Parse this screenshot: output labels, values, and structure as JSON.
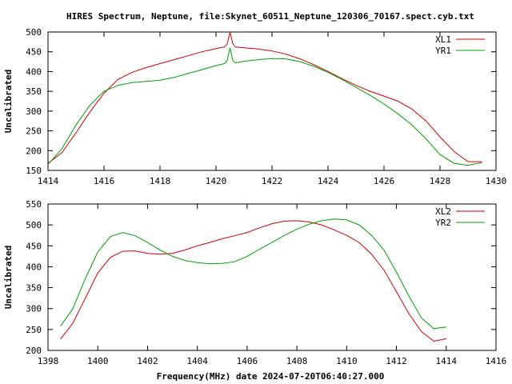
{
  "title": "HIRES Spectrum, Neptune, file:Skynet_60511_Neptune_120306_70167.spect.cyb.txt",
  "xlabel": "Frequency(MHz) date 2024-07-20T06:40:27.000",
  "colors": {
    "red": "#cc0000",
    "green": "#00a000"
  },
  "chart_data": [
    {
      "type": "line",
      "ylabel": "Uncalibrated",
      "xlim": [
        1414,
        1430
      ],
      "ylim": [
        150,
        500
      ],
      "xticks": [
        1414,
        1416,
        1418,
        1420,
        1422,
        1424,
        1426,
        1428,
        1430
      ],
      "yticks": [
        150,
        200,
        250,
        300,
        350,
        400,
        450,
        500
      ],
      "legend": "top-right",
      "series": [
        {
          "name": "XL1",
          "color": "#cc0000",
          "x": [
            1414.0,
            1414.5,
            1415.0,
            1415.5,
            1416.0,
            1416.5,
            1417.0,
            1417.5,
            1418.0,
            1418.5,
            1419.0,
            1419.5,
            1420.0,
            1420.3,
            1420.4,
            1420.5,
            1420.6,
            1420.7,
            1421.0,
            1421.5,
            1422.0,
            1422.5,
            1423.0,
            1423.5,
            1424.0,
            1424.5,
            1425.0,
            1425.5,
            1426.0,
            1426.5,
            1427.0,
            1427.5,
            1428.0,
            1428.5,
            1429.0,
            1429.5
          ],
          "y": [
            168,
            195,
            245,
            298,
            345,
            380,
            398,
            410,
            420,
            430,
            440,
            450,
            458,
            462,
            470,
            500,
            470,
            462,
            460,
            457,
            452,
            444,
            432,
            417,
            400,
            382,
            365,
            350,
            338,
            325,
            305,
            275,
            235,
            198,
            172,
            172
          ]
        },
        {
          "name": "YR1",
          "color": "#00a000",
          "x": [
            1414.0,
            1414.5,
            1415.0,
            1415.5,
            1416.0,
            1416.5,
            1417.0,
            1417.5,
            1418.0,
            1418.5,
            1419.0,
            1419.5,
            1420.0,
            1420.3,
            1420.4,
            1420.5,
            1420.6,
            1420.7,
            1421.0,
            1421.5,
            1422.0,
            1422.5,
            1423.0,
            1423.5,
            1424.0,
            1424.5,
            1425.0,
            1425.5,
            1426.0,
            1426.5,
            1427.0,
            1427.5,
            1428.0,
            1428.5,
            1429.0,
            1429.5
          ],
          "y": [
            165,
            205,
            265,
            315,
            350,
            365,
            372,
            375,
            378,
            385,
            395,
            405,
            415,
            420,
            428,
            460,
            428,
            422,
            426,
            430,
            433,
            432,
            425,
            413,
            398,
            380,
            360,
            340,
            318,
            293,
            265,
            230,
            190,
            168,
            163,
            170
          ]
        }
      ]
    },
    {
      "type": "line",
      "ylabel": "Uncalibrated",
      "xlim": [
        1398,
        1416
      ],
      "ylim": [
        200,
        550
      ],
      "xticks": [
        1398,
        1400,
        1402,
        1404,
        1406,
        1408,
        1410,
        1412,
        1414,
        1416
      ],
      "yticks": [
        200,
        250,
        300,
        350,
        400,
        450,
        500,
        550
      ],
      "legend": "top-right",
      "series": [
        {
          "name": "XL2",
          "color": "#cc0000",
          "x": [
            1398.5,
            1399.0,
            1399.5,
            1400.0,
            1400.5,
            1401.0,
            1401.5,
            1402.0,
            1402.5,
            1403.0,
            1403.5,
            1404.0,
            1404.5,
            1405.0,
            1405.5,
            1406.0,
            1406.5,
            1407.0,
            1407.5,
            1408.0,
            1408.5,
            1409.0,
            1409.5,
            1410.0,
            1410.5,
            1411.0,
            1411.5,
            1412.0,
            1412.5,
            1413.0,
            1413.5,
            1414.0
          ],
          "y": [
            227,
            265,
            325,
            385,
            422,
            437,
            438,
            432,
            430,
            432,
            440,
            450,
            458,
            467,
            474,
            482,
            493,
            503,
            509,
            510,
            507,
            500,
            488,
            475,
            458,
            430,
            392,
            340,
            288,
            245,
            222,
            228
          ]
        },
        {
          "name": "YR2",
          "color": "#00a000",
          "x": [
            1398.5,
            1399.0,
            1399.5,
            1400.0,
            1400.5,
            1401.0,
            1401.5,
            1402.0,
            1402.5,
            1403.0,
            1403.5,
            1404.0,
            1404.5,
            1405.0,
            1405.5,
            1406.0,
            1406.5,
            1407.0,
            1407.5,
            1408.0,
            1408.5,
            1409.0,
            1409.5,
            1410.0,
            1410.5,
            1411.0,
            1411.5,
            1412.0,
            1412.5,
            1413.0,
            1413.5,
            1414.0
          ],
          "y": [
            258,
            300,
            372,
            435,
            472,
            482,
            474,
            458,
            440,
            425,
            415,
            410,
            407,
            408,
            412,
            425,
            442,
            458,
            475,
            490,
            502,
            510,
            514,
            512,
            500,
            475,
            440,
            387,
            330,
            278,
            252,
            256
          ]
        }
      ]
    }
  ]
}
